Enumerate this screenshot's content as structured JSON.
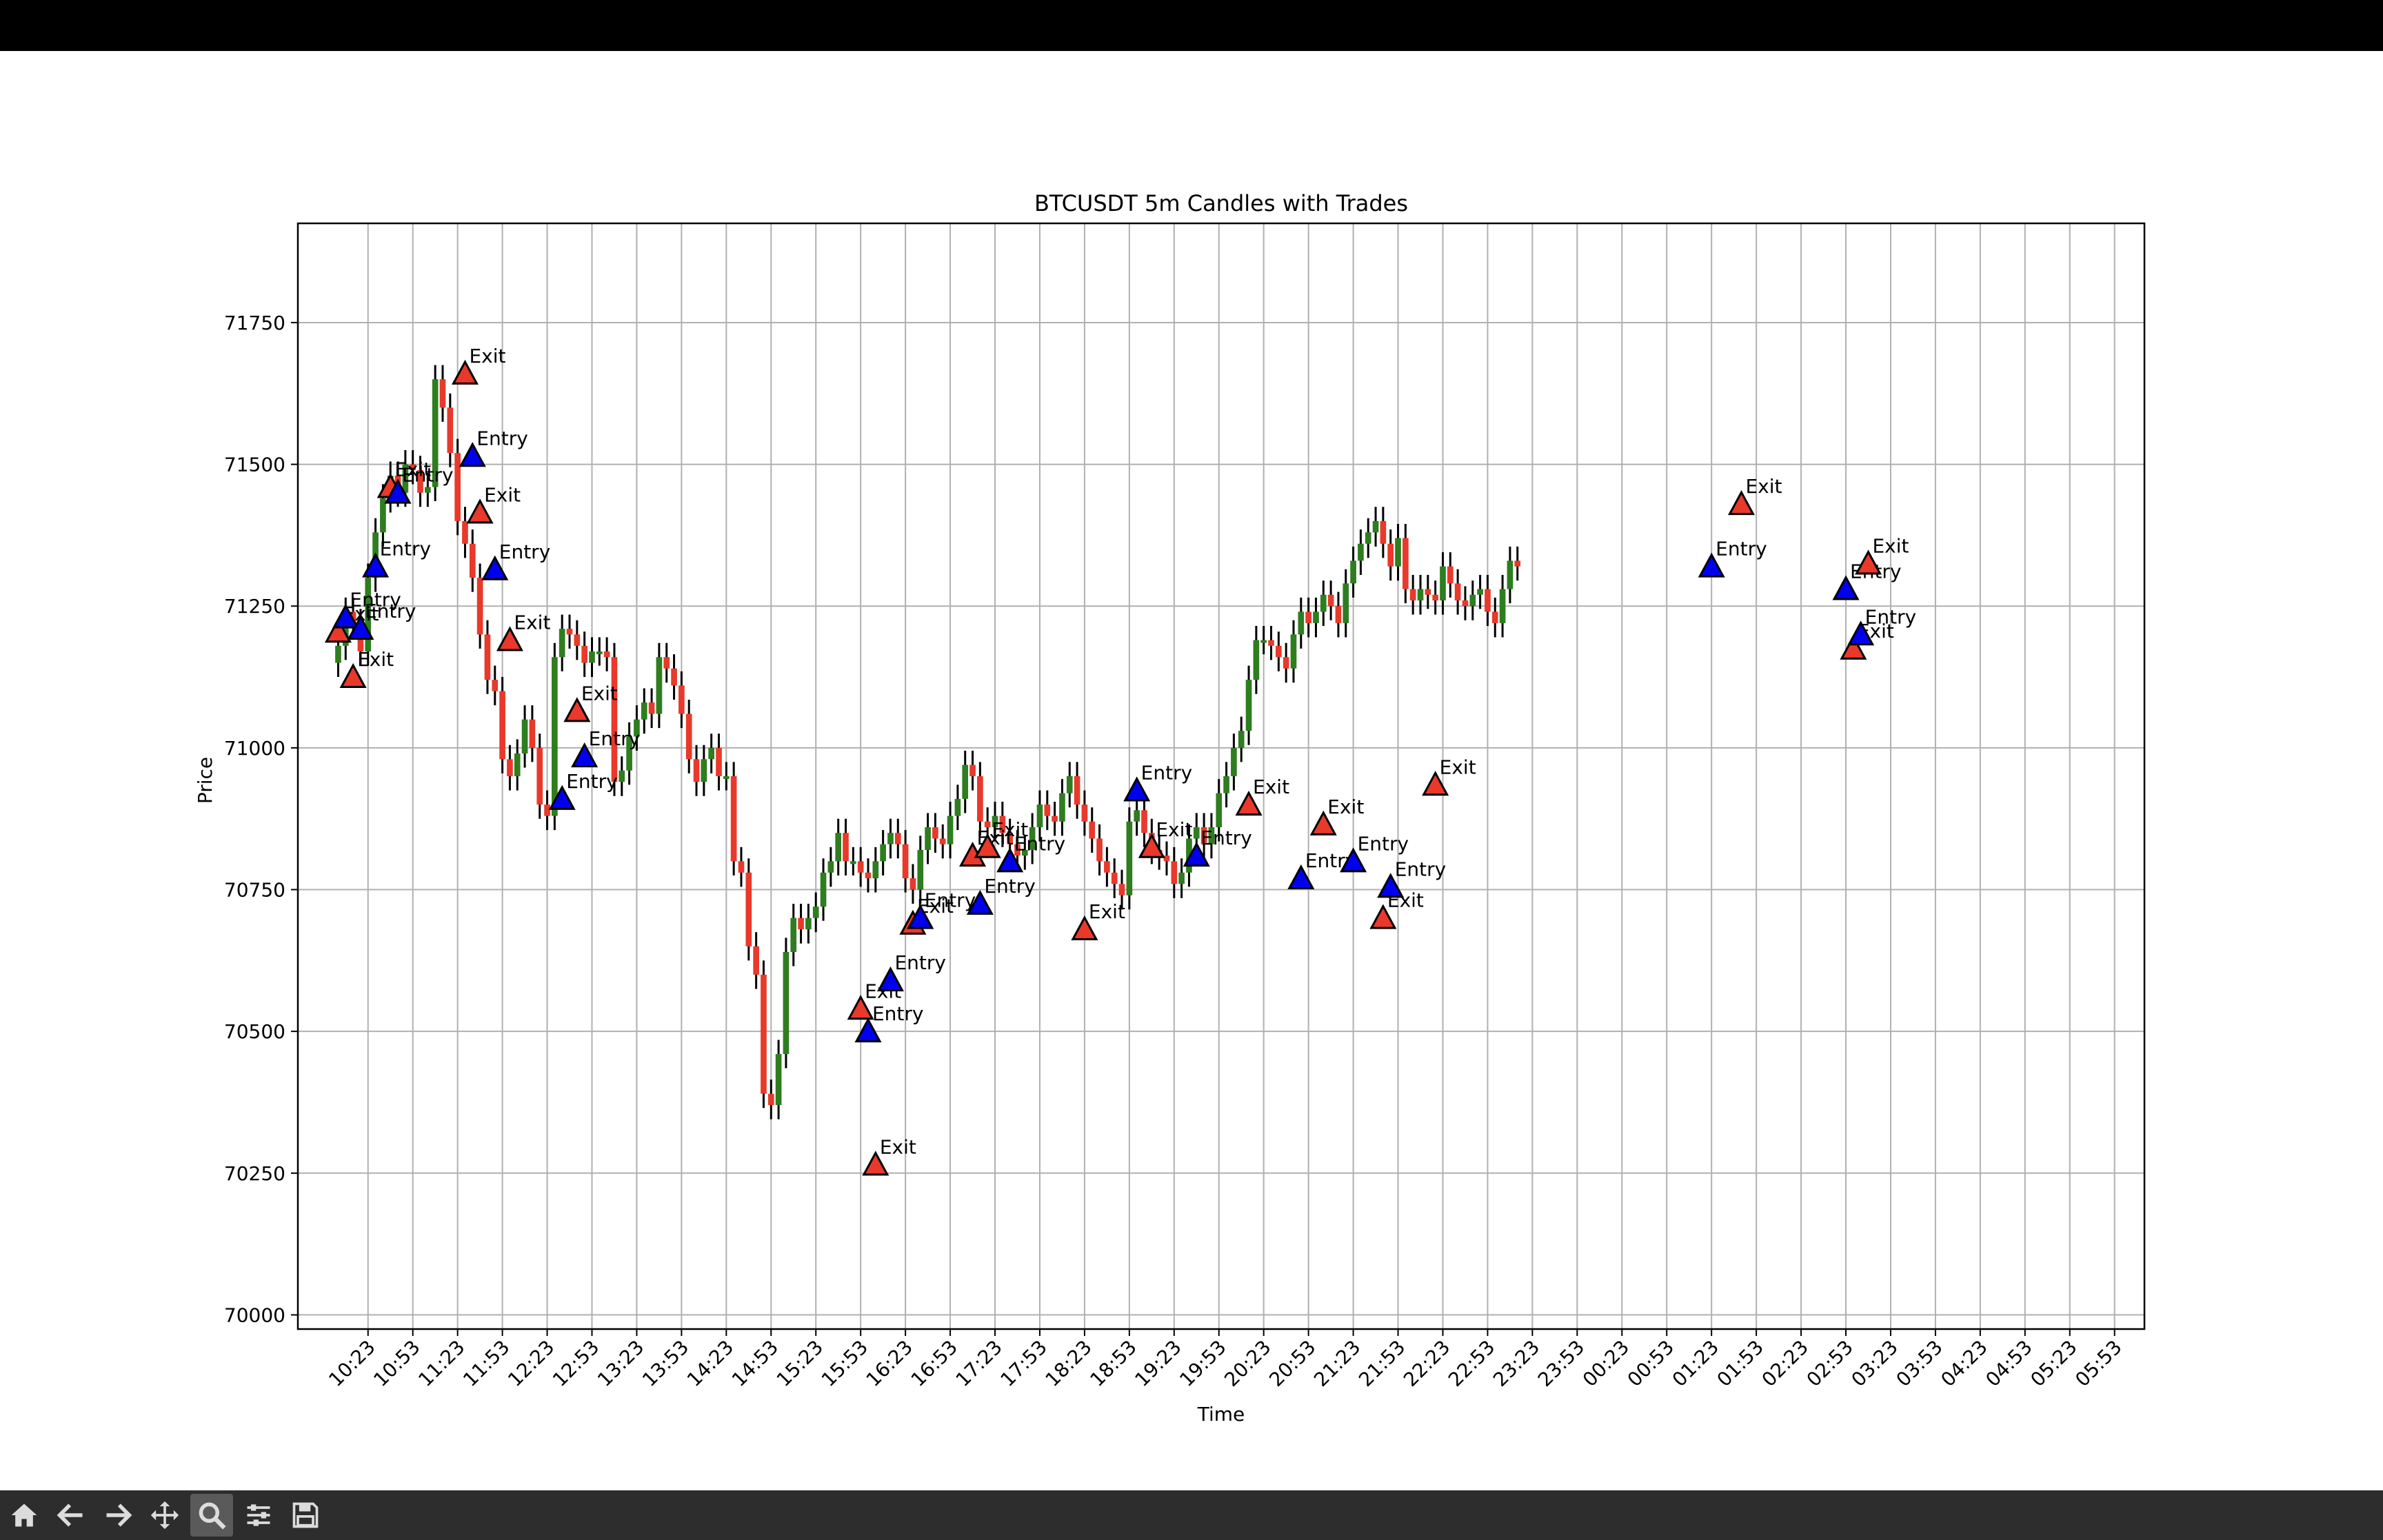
{
  "window": {
    "title": ""
  },
  "chart_data": {
    "type": "candlestick",
    "title": "BTCUSDT 5m Candles with Trades",
    "xlabel": "Time",
    "ylabel": "Price",
    "ylim": [
      69975,
      71925
    ],
    "yticks": [
      70000,
      70250,
      70500,
      70750,
      71000,
      71250,
      71500,
      71750
    ],
    "xticks": [
      "10:23",
      "10:53",
      "11:23",
      "11:53",
      "12:23",
      "12:53",
      "13:23",
      "13:53",
      "14:23",
      "14:53",
      "15:23",
      "15:53",
      "16:23",
      "16:53",
      "17:23",
      "17:53",
      "18:23",
      "18:53",
      "19:23",
      "19:53",
      "20:23",
      "20:53",
      "21:23",
      "21:53",
      "22:23",
      "22:53",
      "23:23",
      "23:53",
      "00:23",
      "00:53",
      "01:23",
      "01:53",
      "02:23",
      "02:53",
      "03:23",
      "03:53",
      "04:23",
      "04:53",
      "05:23",
      "05:53"
    ],
    "grid": true,
    "candle_colors": {
      "up": "#2e7d1f",
      "down": "#e8392b",
      "wick": "#000000"
    },
    "trade_colors": {
      "Entry": "#0000ee",
      "Exit": "#e8392b"
    },
    "candle_start": "10:03",
    "candle_interval_min": 5,
    "close": [
      71180,
      71240,
      71220,
      71170,
      71300,
      71380,
      71440,
      71480,
      71450,
      71500,
      71490,
      71450,
      71460,
      71650,
      71600,
      71520,
      71400,
      71360,
      71300,
      71200,
      71120,
      71100,
      70980,
      70950,
      70990,
      71050,
      71000,
      70900,
      70880,
      71160,
      71210,
      71200,
      71180,
      71150,
      71170,
      71170,
      71160,
      70940,
      70960,
      71020,
      71050,
      71080,
      71060,
      71160,
      71140,
      71110,
      71060,
      70980,
      70940,
      70980,
      71000,
      70950,
      70950,
      70800,
      70780,
      70650,
      70600,
      70390,
      70370,
      70460,
      70640,
      70700,
      70680,
      70700,
      70720,
      70780,
      70800,
      70850,
      70800,
      70800,
      70780,
      70770,
      70800,
      70830,
      70850,
      70830,
      70770,
      70750,
      70820,
      70860,
      70840,
      70830,
      70880,
      70910,
      70970,
      70950,
      70870,
      70860,
      70880,
      70850,
      70830,
      70810,
      70820,
      70860,
      70900,
      70880,
      70870,
      70920,
      70950,
      70900,
      70870,
      70840,
      70800,
      70780,
      70760,
      70740,
      70870,
      70890,
      70850,
      70820,
      70810,
      70800,
      70760,
      70780,
      70840,
      70860,
      70830,
      70860,
      70920,
      70950,
      71000,
      71030,
      71120,
      71190,
      71190,
      71180,
      71160,
      71140,
      71200,
      71240,
      71220,
      71240,
      71270,
      71250,
      71220,
      71290,
      71330,
      71360,
      71380,
      71400,
      71360,
      71320,
      71370,
      71280,
      71260,
      71280,
      71270,
      71260,
      71320,
      71290,
      71260,
      71250,
      71270,
      71280,
      71240,
      71220,
      71280,
      71330,
      71320
    ],
    "candles_note": "open of each candle equals close of the previous candle",
    "trades": [
      {
        "time": "10:03",
        "price": 71205,
        "type": "Exit"
      },
      {
        "time": "10:08",
        "price": 71230,
        "type": "Entry"
      },
      {
        "time": "10:13",
        "price": 71125,
        "type": "Exit"
      },
      {
        "time": "10:18",
        "price": 71210,
        "type": "Entry"
      },
      {
        "time": "10:28",
        "price": 71320,
        "type": "Entry"
      },
      {
        "time": "10:38",
        "price": 71460,
        "type": "Exit"
      },
      {
        "time": "10:43",
        "price": 71450,
        "type": "Entry"
      },
      {
        "time": "11:28",
        "price": 71660,
        "type": "Exit"
      },
      {
        "time": "11:33",
        "price": 71515,
        "type": "Entry"
      },
      {
        "time": "11:38",
        "price": 71415,
        "type": "Exit"
      },
      {
        "time": "11:48",
        "price": 71315,
        "type": "Entry"
      },
      {
        "time": "11:58",
        "price": 71190,
        "type": "Exit"
      },
      {
        "time": "12:33",
        "price": 70910,
        "type": "Entry"
      },
      {
        "time": "12:43",
        "price": 71065,
        "type": "Exit"
      },
      {
        "time": "12:48",
        "price": 70985,
        "type": "Entry"
      },
      {
        "time": "15:53",
        "price": 70540,
        "type": "Exit"
      },
      {
        "time": "15:58",
        "price": 70500,
        "type": "Entry"
      },
      {
        "time": "16:03",
        "price": 70265,
        "type": "Exit"
      },
      {
        "time": "16:13",
        "price": 70590,
        "type": "Entry"
      },
      {
        "time": "16:28",
        "price": 70690,
        "type": "Exit"
      },
      {
        "time": "16:33",
        "price": 70700,
        "type": "Entry"
      },
      {
        "time": "17:08",
        "price": 70810,
        "type": "Exit"
      },
      {
        "time": "17:13",
        "price": 70725,
        "type": "Entry"
      },
      {
        "time": "17:18",
        "price": 70825,
        "type": "Exit"
      },
      {
        "time": "17:33",
        "price": 70800,
        "type": "Entry"
      },
      {
        "time": "18:23",
        "price": 70680,
        "type": "Exit"
      },
      {
        "time": "18:58",
        "price": 70925,
        "type": "Entry"
      },
      {
        "time": "19:08",
        "price": 70825,
        "type": "Exit"
      },
      {
        "time": "19:38",
        "price": 70810,
        "type": "Entry"
      },
      {
        "time": "20:13",
        "price": 70900,
        "type": "Exit"
      },
      {
        "time": "20:48",
        "price": 70770,
        "type": "Entry"
      },
      {
        "time": "21:03",
        "price": 70865,
        "type": "Exit"
      },
      {
        "time": "21:23",
        "price": 70800,
        "type": "Entry"
      },
      {
        "time": "21:43",
        "price": 70700,
        "type": "Exit"
      },
      {
        "time": "21:48",
        "price": 70755,
        "type": "Entry"
      },
      {
        "time": "22:18",
        "price": 70935,
        "type": "Exit"
      },
      {
        "time": "01:23",
        "price": 71320,
        "type": "Entry"
      },
      {
        "time": "01:43",
        "price": 71430,
        "type": "Exit"
      },
      {
        "time": "02:53",
        "price": 71280,
        "type": "Entry"
      },
      {
        "time": "02:58",
        "price": 71175,
        "type": "Exit"
      },
      {
        "time": "03:03",
        "price": 71200,
        "type": "Entry"
      },
      {
        "time": "03:08",
        "price": 71325,
        "type": "Exit"
      }
    ]
  },
  "toolbar": {
    "buttons": [
      {
        "icon": "home-icon",
        "active": false
      },
      {
        "icon": "back-arrow-icon",
        "active": false
      },
      {
        "icon": "forward-arrow-icon",
        "active": false
      },
      {
        "icon": "pan-move-icon",
        "active": false
      },
      {
        "icon": "zoom-magnifier-icon",
        "active": true
      },
      {
        "icon": "configure-subplots-icon",
        "active": false
      },
      {
        "icon": "save-floppy-icon",
        "active": false
      }
    ]
  }
}
